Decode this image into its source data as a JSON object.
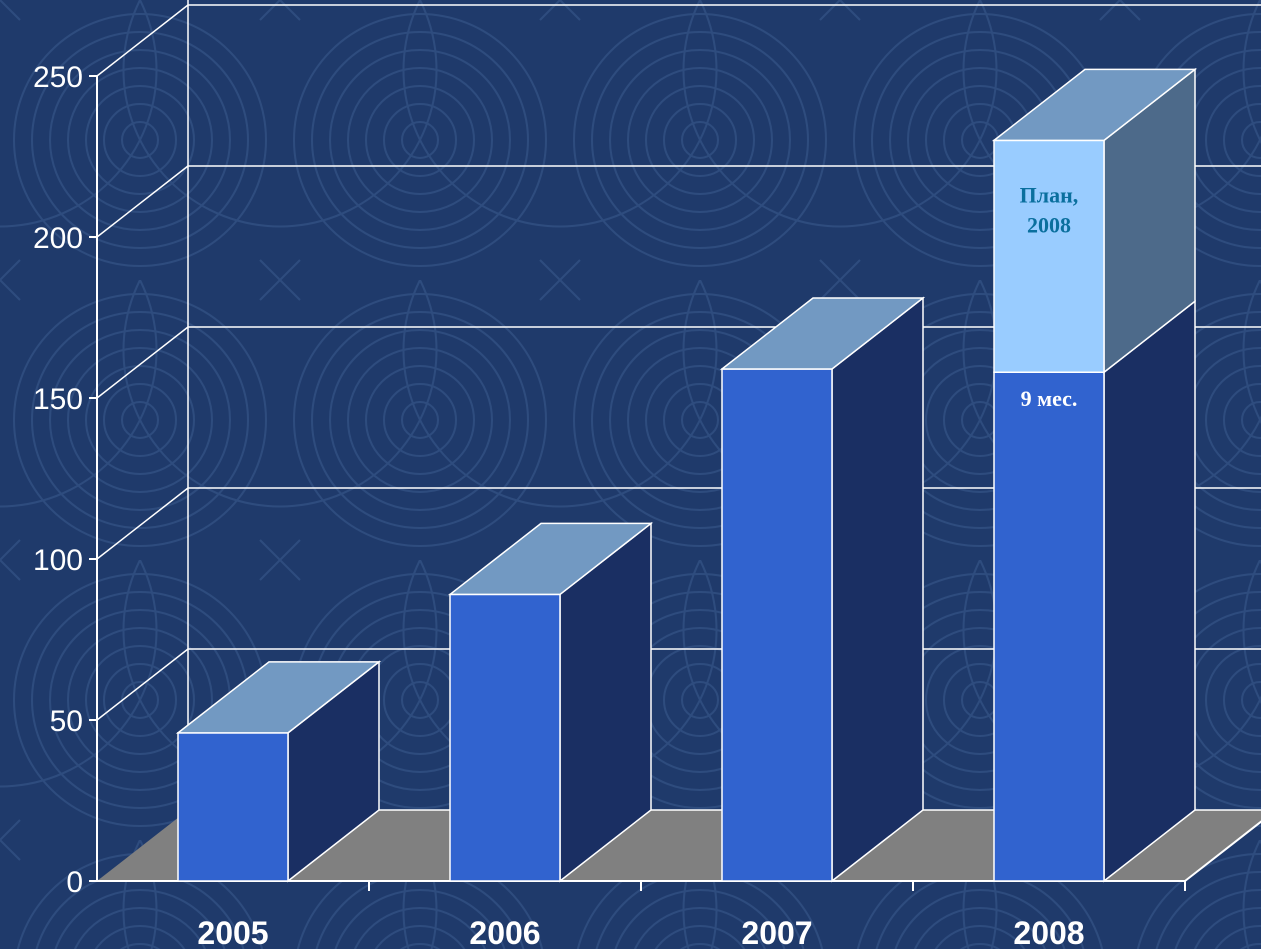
{
  "chart_data": {
    "type": "bar",
    "stacked": true,
    "three_d": true,
    "categories": [
      "2005",
      "2006",
      "2007",
      "2008"
    ],
    "series": [
      {
        "name": "9 мес.",
        "values": [
          46,
          89,
          159,
          158
        ],
        "color": "#3163cf"
      },
      {
        "name": "План, 2008",
        "values": [
          0,
          0,
          0,
          72
        ],
        "color": "#99ccff"
      }
    ],
    "segment_labels": [
      {
        "category": "2008",
        "series": 0,
        "lines": [
          "9 мес."
        ],
        "color": "#ffffff"
      },
      {
        "category": "2008",
        "series": 1,
        "lines": [
          "План,",
          "2008"
        ],
        "color": "#0a6f9e"
      }
    ],
    "yticks": [
      0,
      50,
      100,
      150,
      200,
      250
    ],
    "ylim": [
      0,
      250
    ],
    "grid": true,
    "legend": "none",
    "title": "",
    "xlabel": "",
    "ylabel": ""
  },
  "colors": {
    "background": "#1f3a6b",
    "pattern": "#3a5a8e",
    "floor": "#808080",
    "grid": "#ffffff",
    "side_dark": "#1a2f63",
    "top_face": "#7299c2",
    "plan_side": "#4d6a8a"
  }
}
